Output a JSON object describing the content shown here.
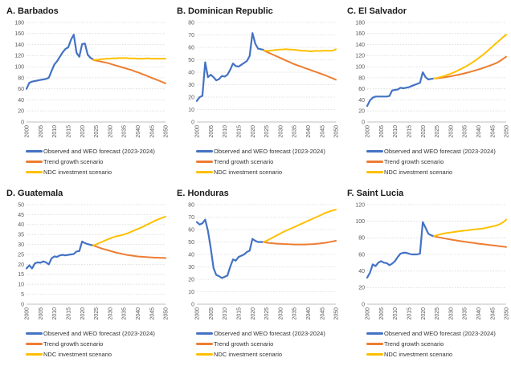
{
  "colors": {
    "blue": "#4472C4",
    "orange": "#ED7D31",
    "yellow": "#FFC000",
    "grid": "#D9D9D9",
    "axis": "#BFBFBF",
    "tick": "#595959"
  },
  "legend": [
    {
      "label": "Observed and WEO forecast (2023-2024)",
      "color": "blue"
    },
    {
      "label": "Trend growth scenario",
      "color": "orange"
    },
    {
      "label": "NDC investment scenario",
      "color": "yellow"
    }
  ],
  "chart_data": [
    {
      "type": "line",
      "title": "A. Barbados",
      "x_range": [
        2000,
        2050
      ],
      "x_ticks": [
        2000,
        2005,
        2010,
        2015,
        2020,
        2025,
        2030,
        2035,
        2040,
        2045,
        2050
      ],
      "ylim": [
        0,
        180
      ],
      "ystep": 20,
      "series": [
        {
          "name": "Observed and WEO forecast (2023-2024)",
          "color": "blue",
          "start_year": 2000,
          "values": [
            60,
            71,
            73,
            74,
            75,
            76,
            77,
            78,
            80,
            92,
            104,
            110,
            118,
            126,
            132,
            135,
            149,
            158,
            125,
            118,
            141,
            142,
            122,
            116,
            113
          ]
        },
        {
          "name": "Trend growth scenario",
          "color": "orange",
          "start_year": 2024,
          "values": [
            112,
            111,
            110,
            109,
            108,
            107,
            105.5,
            104,
            102.5,
            101,
            99.5,
            98,
            96.5,
            95,
            93.5,
            91.5,
            90,
            88,
            86,
            84,
            82,
            80,
            78,
            76,
            74,
            72,
            70
          ]
        },
        {
          "name": "NDC investment scenario",
          "color": "yellow",
          "start_year": 2024,
          "values": [
            112,
            112.5,
            113,
            113.5,
            114,
            114.5,
            114.5,
            115,
            115,
            115.5,
            115.5,
            115.5,
            115.5,
            115,
            115,
            115,
            114.5,
            114.5,
            114.5,
            115,
            115,
            114.5,
            114.5,
            114.5,
            114.5,
            114.5,
            114.5
          ]
        }
      ]
    },
    {
      "type": "line",
      "title": "B. Dominican Republic",
      "x_range": [
        2000,
        2050
      ],
      "x_ticks": [
        2000,
        2005,
        2010,
        2015,
        2020,
        2025,
        2030,
        2035,
        2040,
        2045,
        2050
      ],
      "ylim": [
        0,
        80
      ],
      "ystep": 10,
      "series": [
        {
          "name": "Observed and WEO forecast (2023-2024)",
          "color": "blue",
          "start_year": 2000,
          "values": [
            17,
            20,
            21,
            48,
            36,
            38,
            36,
            33.5,
            34.5,
            37,
            36.5,
            38,
            42,
            47,
            45,
            44.5,
            46,
            47.5,
            49,
            53,
            71.5,
            63,
            59,
            58.5,
            58
          ]
        },
        {
          "name": "Trend growth scenario",
          "color": "orange",
          "start_year": 2024,
          "values": [
            57.5,
            56.5,
            55.5,
            54.5,
            53.5,
            52.5,
            51.5,
            50.5,
            49.5,
            48.5,
            47.5,
            46.5,
            45.7,
            44.9,
            44.1,
            43.3,
            42.5,
            41.7,
            40.9,
            40.1,
            39.3,
            38.5,
            37.7,
            36.8,
            35.9,
            35,
            34
          ]
        },
        {
          "name": "NDC investment scenario",
          "color": "yellow",
          "start_year": 2024,
          "values": [
            57.5,
            57.3,
            57.3,
            57.5,
            57.8,
            58,
            58.2,
            58.3,
            58.5,
            58.3,
            58.2,
            58,
            57.8,
            57.5,
            57.3,
            57.2,
            57,
            56.8,
            57,
            57.2,
            57,
            57.2,
            57.3,
            57.2,
            57.3,
            57.5,
            58.5
          ]
        }
      ]
    },
    {
      "type": "line",
      "title": "C. El Salvador",
      "x_range": [
        2000,
        2050
      ],
      "x_ticks": [
        2000,
        2005,
        2010,
        2015,
        2020,
        2025,
        2030,
        2035,
        2040,
        2045,
        2050
      ],
      "ylim": [
        0,
        180
      ],
      "ystep": 20,
      "series": [
        {
          "name": "Observed and WEO forecast (2023-2024)",
          "color": "blue",
          "start_year": 2000,
          "values": [
            29,
            39,
            44,
            46,
            46,
            46,
            46,
            46,
            47,
            57,
            58,
            59,
            62,
            61,
            62,
            63,
            65,
            67,
            69,
            71,
            90,
            81,
            77,
            78,
            78.5
          ]
        },
        {
          "name": "Trend growth scenario",
          "color": "orange",
          "start_year": 2024,
          "values": [
            78.5,
            79,
            79.6,
            80.3,
            81,
            81.8,
            82.7,
            83.6,
            84.6,
            85.7,
            86.8,
            88,
            89.3,
            90.6,
            92,
            93.5,
            95,
            96.6,
            98.3,
            100,
            101.8,
            103.7,
            105.7,
            108,
            111,
            114.5,
            118
          ]
        },
        {
          "name": "NDC investment scenario",
          "color": "yellow",
          "start_year": 2024,
          "values": [
            78.5,
            79.5,
            80.8,
            82.2,
            83.8,
            85.5,
            87.4,
            89.4,
            91.6,
            94,
            96.5,
            99.2,
            102,
            105,
            108.2,
            111.6,
            115.2,
            119,
            123,
            127.2,
            131.6,
            136.2,
            141,
            145,
            149.5,
            154,
            158
          ]
        }
      ]
    },
    {
      "type": "line",
      "title": "D. Guatemala",
      "x_range": [
        2000,
        2050
      ],
      "x_ticks": [
        2000,
        2005,
        2010,
        2015,
        2020,
        2025,
        2030,
        2035,
        2040,
        2045,
        2050
      ],
      "ylim": [
        0,
        50
      ],
      "ystep": 5,
      "series": [
        {
          "name": "Observed and WEO forecast (2023-2024)",
          "color": "blue",
          "start_year": 2000,
          "values": [
            18,
            19.5,
            18,
            20.5,
            21,
            20.8,
            21.5,
            21,
            20,
            23,
            24,
            23.8,
            24.5,
            24.8,
            24.5,
            24.8,
            25,
            25.2,
            26.5,
            26.7,
            31.5,
            30.7,
            30.2,
            29.8,
            29.5
          ]
        },
        {
          "name": "Trend growth scenario",
          "color": "orange",
          "start_year": 2024,
          "values": [
            29.5,
            29,
            28.5,
            28,
            27.6,
            27.2,
            26.8,
            26.4,
            26,
            25.7,
            25.4,
            25.1,
            24.8,
            24.6,
            24.4,
            24.2,
            24,
            23.9,
            23.8,
            23.7,
            23.6,
            23.5,
            23.4,
            23.4,
            23.3,
            23.3,
            23.2
          ]
        },
        {
          "name": "NDC investment scenario",
          "color": "yellow",
          "start_year": 2024,
          "values": [
            29.5,
            30,
            30.6,
            31.2,
            31.8,
            32.4,
            33,
            33.6,
            34,
            34.3,
            34.6,
            35,
            35.5,
            36,
            36.6,
            37.2,
            37.8,
            38.4,
            39,
            39.7,
            40.4,
            41.1,
            41.8,
            42.4,
            43,
            43.5,
            44
          ]
        }
      ]
    },
    {
      "type": "line",
      "title": "E. Honduras",
      "x_range": [
        2000,
        2050
      ],
      "x_ticks": [
        2000,
        2005,
        2010,
        2015,
        2020,
        2025,
        2030,
        2035,
        2040,
        2045,
        2050
      ],
      "ylim": [
        0,
        80
      ],
      "ystep": 10,
      "series": [
        {
          "name": "Observed and WEO forecast (2023-2024)",
          "color": "blue",
          "start_year": 2000,
          "values": [
            66,
            64,
            65,
            68,
            59,
            45,
            29,
            23.5,
            22.5,
            21,
            22,
            23,
            30,
            36,
            35,
            38,
            39,
            40,
            42,
            43,
            52.5,
            51,
            50,
            50,
            50
          ]
        },
        {
          "name": "Trend growth scenario",
          "color": "orange",
          "start_year": 2024,
          "values": [
            50,
            49.5,
            49.2,
            49,
            48.8,
            48.6,
            48.5,
            48.4,
            48.3,
            48.2,
            48.1,
            48,
            48,
            48,
            48,
            48,
            48.1,
            48.2,
            48.3,
            48.5,
            48.7,
            49,
            49.3,
            49.7,
            50.1,
            50.5,
            51
          ]
        },
        {
          "name": "NDC investment scenario",
          "color": "yellow",
          "start_year": 2024,
          "values": [
            50,
            51,
            52,
            53.2,
            54.4,
            55.6,
            56.8,
            58,
            59,
            60,
            61,
            62,
            63,
            64,
            65,
            66,
            67,
            68,
            69,
            70,
            71,
            72,
            73.2,
            74,
            74.8,
            75.4,
            76
          ]
        }
      ]
    },
    {
      "type": "line",
      "title": "F. Saint Lucia",
      "x_range": [
        2000,
        2050
      ],
      "x_ticks": [
        2000,
        2005,
        2010,
        2015,
        2020,
        2025,
        2030,
        2035,
        2040,
        2045,
        2050
      ],
      "ylim": [
        0,
        120
      ],
      "ystep": 20,
      "series": [
        {
          "name": "Observed and WEO forecast (2023-2024)",
          "color": "blue",
          "start_year": 2000,
          "values": [
            32,
            38,
            48,
            46,
            50,
            52,
            50,
            49.5,
            47,
            49,
            52,
            57,
            61,
            62,
            62,
            61,
            60,
            60,
            60,
            61,
            99,
            92,
            85,
            83,
            82
          ]
        },
        {
          "name": "Trend growth scenario",
          "color": "orange",
          "start_year": 2024,
          "values": [
            82,
            81.2,
            80.5,
            79.8,
            79.2,
            78.6,
            78,
            77.4,
            76.9,
            76.4,
            75.9,
            75.4,
            74.9,
            74.4,
            74,
            73.5,
            73,
            72.6,
            72.2,
            71.8,
            71.4,
            71,
            70.6,
            70.2,
            69.8,
            69.4,
            69
          ]
        },
        {
          "name": "NDC investment scenario",
          "color": "yellow",
          "start_year": 2024,
          "values": [
            82,
            83,
            84,
            84.8,
            85.5,
            86,
            86.5,
            87,
            87.5,
            88,
            88.3,
            88.7,
            89,
            89.5,
            90,
            90.3,
            90.7,
            91,
            91.5,
            92.2,
            93,
            93.8,
            94.5,
            95.5,
            97,
            99,
            102
          ]
        }
      ]
    }
  ]
}
